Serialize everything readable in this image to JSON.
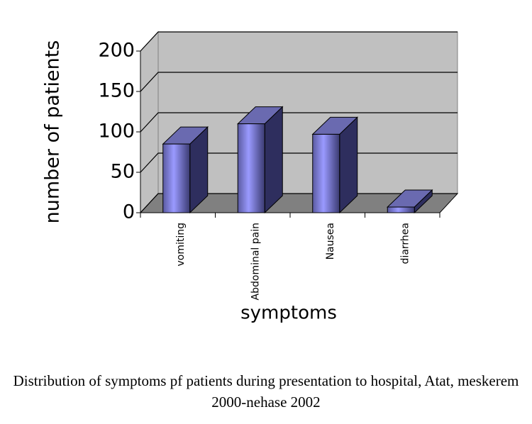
{
  "chart_data": {
    "type": "bar3d",
    "categories": [
      "vomiting",
      "Abdominal pain",
      "Nausea",
      "diarrhea"
    ],
    "values": [
      85,
      110,
      97,
      7
    ],
    "color": "#9999ff",
    "ylabel": "number of patients",
    "xlabel": "symptoms",
    "ylim": [
      0,
      200
    ],
    "yticks": [
      0,
      50,
      100,
      150,
      200
    ],
    "grid": true,
    "caption": "Distribution of symptoms pf patients during presentation to hospital, Atat, meskerem 2000-nehase 2002"
  }
}
